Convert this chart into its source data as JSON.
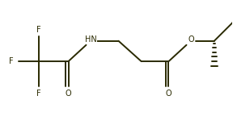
{
  "bg_color": "#ffffff",
  "line_color": "#2a2a00",
  "bond_lw": 1.4,
  "figsize": [
    2.93,
    1.55
  ],
  "dpi": 100,
  "font_size": 7.0,
  "font_family": "Arial",
  "xlim": [
    0,
    10.0
  ],
  "ylim": [
    0.0,
    5.5
  ]
}
